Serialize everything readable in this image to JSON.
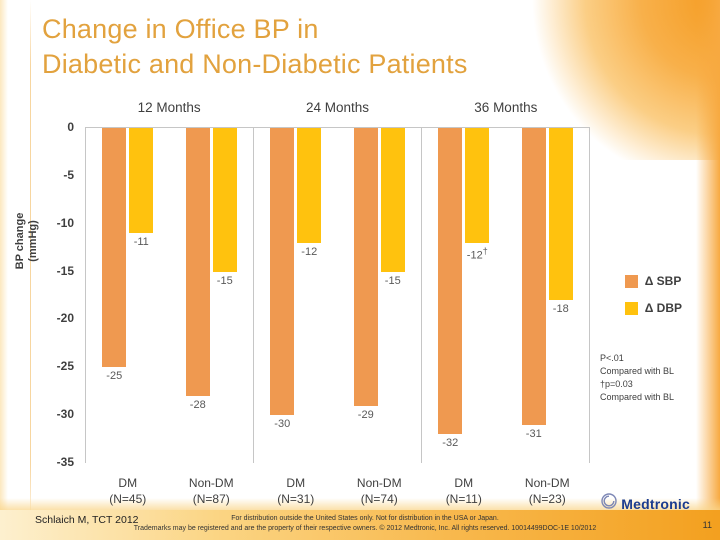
{
  "slide": {
    "title_line1": "Change in Office BP in",
    "title_line2": "Diabetic and Non-Diabetic Patients"
  },
  "chart_data": {
    "type": "bar",
    "title": "Change in Office BP in Diabetic and Non-Diabetic Patients",
    "ylabel_line1": "BP change",
    "ylabel_line2": "(mmHg)",
    "ylim": [
      0,
      -35
    ],
    "yticks": [
      0,
      -5,
      -10,
      -15,
      -20,
      -25,
      -30,
      -35
    ],
    "grid": "off",
    "legend_position": "right",
    "periods": [
      "12 Months",
      "24 Months",
      "36 Months"
    ],
    "series_names": [
      "Δ SBP",
      "Δ DBP"
    ],
    "colors": {
      "sbp": "#EF9950",
      "dbp": "#FFC20E"
    },
    "groups": [
      {
        "period_index": 0,
        "label_line1": "DM",
        "label_line2": "(N=45)",
        "bars": [
          {
            "series": "Δ SBP",
            "value": -25,
            "label": "-25"
          },
          {
            "series": "Δ DBP",
            "value": -11,
            "label": "-11"
          }
        ]
      },
      {
        "period_index": 0,
        "label_line1": "Non-DM",
        "label_line2": "(N=87)",
        "bars": [
          {
            "series": "Δ SBP",
            "value": -28,
            "label": "-28"
          },
          {
            "series": "Δ DBP",
            "value": -15,
            "label": "-15"
          }
        ]
      },
      {
        "period_index": 1,
        "label_line1": "DM",
        "label_line2": "(N=31)",
        "bars": [
          {
            "series": "Δ SBP",
            "value": -30,
            "label": "-30"
          },
          {
            "series": "Δ DBP",
            "value": -12,
            "label": "-12"
          }
        ]
      },
      {
        "period_index": 1,
        "label_line1": "Non-DM",
        "label_line2": "(N=74)",
        "bars": [
          {
            "series": "Δ SBP",
            "value": -29,
            "label": "-29"
          },
          {
            "series": "Δ DBP",
            "value": -15,
            "label": "-15"
          }
        ]
      },
      {
        "period_index": 2,
        "label_line1": "DM",
        "label_line2": "(N=11)",
        "bars": [
          {
            "series": "Δ SBP",
            "value": -32,
            "label": "-32"
          },
          {
            "series": "Δ DBP",
            "value": -12,
            "label": "-12",
            "dagger": true
          }
        ]
      },
      {
        "period_index": 2,
        "label_line1": "Non-DM",
        "label_line2": "(N=23)",
        "bars": [
          {
            "series": "Δ SBP",
            "value": -31,
            "label": "-31"
          },
          {
            "series": "Δ DBP",
            "value": -18,
            "label": "-18"
          }
        ]
      }
    ]
  },
  "legend": {
    "items": [
      {
        "label": "Δ SBP",
        "color": "#EF9950"
      },
      {
        "label": "Δ DBP",
        "color": "#FFC20E"
      }
    ]
  },
  "annotation": {
    "lines": [
      "P<.01",
      "Compared with BL",
      "†p=0.03",
      "Compared with BL"
    ]
  },
  "footer": {
    "citation": "Schlaich M, TCT 2012",
    "legal_line1": "For distribution outside the United States only. Not for distribution in the USA or Japan.",
    "legal_line2": "Trademarks may be registered and are the property of their respective owners. © 2012 Medtronic, Inc. All rights reserved. 10014499DOC-1E 10/2012",
    "logo_text": "Medtronic",
    "page_number": "11"
  }
}
